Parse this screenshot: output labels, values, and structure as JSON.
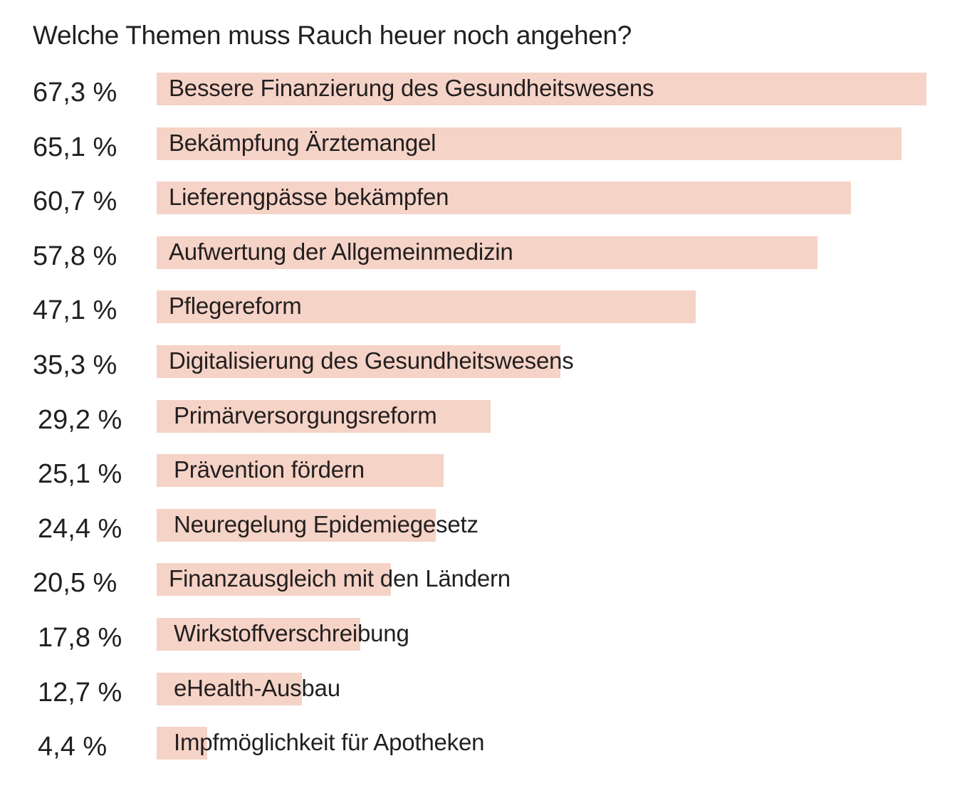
{
  "chart_data": {
    "type": "bar",
    "orientation": "horizontal",
    "title": "Welche Themen muss Rauch heuer noch angehen?",
    "bar_color": "#f5d3c6",
    "text_color": "#231f20",
    "xlim": [
      0,
      67.3
    ],
    "categories": [
      "Bessere Finanzierung des Gesundheitswesens",
      "Bekämpfung Ärztemangel",
      "Lieferengpässe bekämpfen",
      "Aufwertung der Allgemeinmedizin",
      "Pflegereform",
      "Digitalisierung des Gesundheitswesens",
      "Primärversorgungsreform",
      "Prävention fördern",
      "Neuregelung Epidemiegesetz",
      "Finanzausgleich mit den Ländern",
      "Wirkstoffverschreibung",
      "eHealth-Ausbau",
      "Impfmöglichkeit für Apotheken"
    ],
    "values": [
      67.3,
      65.1,
      60.7,
      57.8,
      47.1,
      35.3,
      29.2,
      25.1,
      24.4,
      20.5,
      17.8,
      12.7,
      4.4
    ],
    "value_labels": [
      "67,3 %",
      "65,1 %",
      "60,7 %",
      "57,8 %",
      "47,1 %",
      "35,3 %",
      "29,2 %",
      "25,1 %",
      "24,4 %",
      "20,5 %",
      "17,8 %",
      "12,7 %",
      "4,4 %"
    ]
  }
}
